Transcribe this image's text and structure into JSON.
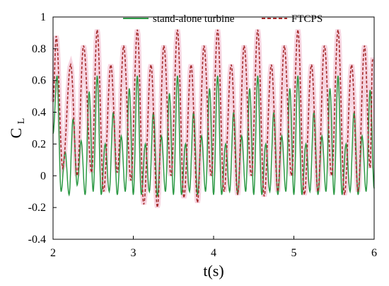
{
  "chart_data": {
    "type": "line",
    "xlabel": "t(s)",
    "ylabel_main": "C",
    "ylabel_sub": "L",
    "xlim": [
      2,
      6
    ],
    "ylim": [
      -0.4,
      1.0
    ],
    "x_ticks": [
      2,
      3,
      4,
      5,
      6
    ],
    "y_ticks": [
      -0.4,
      -0.2,
      0,
      0.2,
      0.4,
      0.6,
      0.8,
      1
    ],
    "y_tick_labels": [
      "-0.4",
      "-0.2",
      "0",
      "0.2",
      "0.4",
      "0.6",
      "0.8",
      "1"
    ],
    "grid": false,
    "legend_position": "top-right",
    "series": [
      {
        "name": "stand-alone turbine",
        "color": "#2e9a46",
        "style": "solid",
        "period_s": 0.1,
        "max": 0.63,
        "min": -0.13,
        "peaks": [
          [
            2.05,
            0.63
          ],
          [
            2.15,
            0.15
          ],
          [
            2.25,
            0.36
          ],
          [
            2.35,
            0.22
          ],
          [
            2.45,
            0.53
          ],
          [
            2.55,
            0.63
          ],
          [
            2.65,
            0.2
          ],
          [
            2.75,
            0.4
          ],
          [
            2.85,
            0.25
          ],
          [
            2.95,
            0.55
          ],
          [
            3.05,
            0.63
          ],
          [
            3.15,
            0.2
          ],
          [
            3.25,
            0.4
          ],
          [
            3.35,
            0.25
          ],
          [
            3.45,
            0.52
          ],
          [
            3.55,
            0.63
          ],
          [
            3.65,
            0.2
          ],
          [
            3.75,
            0.4
          ],
          [
            3.85,
            0.25
          ],
          [
            3.95,
            0.55
          ],
          [
            4.05,
            0.63
          ],
          [
            4.15,
            0.2
          ],
          [
            4.25,
            0.4
          ],
          [
            4.35,
            0.25
          ],
          [
            4.45,
            0.55
          ],
          [
            4.55,
            0.63
          ],
          [
            4.65,
            0.2
          ],
          [
            4.75,
            0.4
          ],
          [
            4.85,
            0.25
          ],
          [
            4.95,
            0.55
          ],
          [
            5.05,
            0.63
          ],
          [
            5.15,
            0.2
          ],
          [
            5.25,
            0.4
          ],
          [
            5.35,
            0.25
          ],
          [
            5.45,
            0.55
          ],
          [
            5.55,
            0.63
          ],
          [
            5.65,
            0.2
          ],
          [
            5.75,
            0.4
          ],
          [
            5.85,
            0.25
          ],
          [
            5.95,
            0.54
          ]
        ],
        "troughs": [
          [
            2.1,
            -0.1
          ],
          [
            2.2,
            -0.12
          ],
          [
            2.3,
            -0.06
          ],
          [
            2.4,
            -0.12
          ],
          [
            2.5,
            -0.1
          ],
          [
            2.6,
            -0.12
          ],
          [
            2.7,
            -0.1
          ],
          [
            2.8,
            -0.12
          ],
          [
            2.9,
            -0.1
          ],
          [
            3.0,
            -0.12
          ],
          [
            3.1,
            -0.12
          ],
          [
            3.2,
            -0.1
          ],
          [
            3.3,
            -0.13
          ],
          [
            3.4,
            -0.1
          ],
          [
            3.5,
            -0.12
          ],
          [
            3.6,
            -0.12
          ],
          [
            3.7,
            -0.1
          ],
          [
            3.8,
            -0.12
          ],
          [
            3.9,
            -0.1
          ],
          [
            4.0,
            -0.12
          ],
          [
            4.1,
            -0.12
          ],
          [
            4.2,
            -0.1
          ],
          [
            4.3,
            -0.12
          ],
          [
            4.4,
            -0.1
          ],
          [
            4.5,
            -0.12
          ],
          [
            4.6,
            -0.12
          ],
          [
            4.7,
            -0.1
          ],
          [
            4.8,
            -0.12
          ],
          [
            4.9,
            -0.1
          ],
          [
            5.0,
            -0.12
          ],
          [
            5.1,
            -0.12
          ],
          [
            5.2,
            -0.1
          ],
          [
            5.3,
            -0.12
          ],
          [
            5.4,
            -0.1
          ],
          [
            5.5,
            -0.12
          ],
          [
            5.6,
            -0.12
          ],
          [
            5.7,
            -0.1
          ],
          [
            5.8,
            -0.12
          ],
          [
            5.9,
            -0.1
          ],
          [
            6.0,
            -0.08
          ]
        ]
      },
      {
        "name": "FTCPS",
        "color": "#a52a2a",
        "style": "dashed",
        "period_s": 0.2,
        "max": 0.92,
        "min": -0.2,
        "peaks": [
          [
            2.04,
            0.88
          ],
          [
            2.22,
            0.7
          ],
          [
            2.38,
            0.82
          ],
          [
            2.55,
            0.92
          ],
          [
            2.72,
            0.7
          ],
          [
            2.88,
            0.82
          ],
          [
            3.05,
            0.92
          ],
          [
            3.22,
            0.7
          ],
          [
            3.38,
            0.82
          ],
          [
            3.55,
            0.92
          ],
          [
            3.72,
            0.7
          ],
          [
            3.88,
            0.82
          ],
          [
            4.05,
            0.92
          ],
          [
            4.22,
            0.7
          ],
          [
            4.38,
            0.82
          ],
          [
            4.55,
            0.92
          ],
          [
            4.72,
            0.7
          ],
          [
            4.88,
            0.82
          ],
          [
            5.05,
            0.92
          ],
          [
            5.22,
            0.7
          ],
          [
            5.38,
            0.82
          ],
          [
            5.55,
            0.92
          ],
          [
            5.72,
            0.7
          ],
          [
            5.88,
            0.82
          ],
          [
            5.98,
            0.73
          ]
        ],
        "troughs": [
          [
            2.12,
            0.05
          ],
          [
            2.3,
            0.0
          ],
          [
            2.48,
            0.02
          ],
          [
            2.63,
            -0.1
          ],
          [
            2.8,
            0.02
          ],
          [
            2.97,
            -0.03
          ],
          [
            3.13,
            -0.18
          ],
          [
            3.3,
            -0.2
          ],
          [
            3.47,
            0.0
          ],
          [
            3.63,
            -0.14
          ],
          [
            3.8,
            -0.17
          ],
          [
            3.97,
            0.0
          ],
          [
            4.13,
            -0.1
          ],
          [
            4.3,
            -0.12
          ],
          [
            4.47,
            0.0
          ],
          [
            4.63,
            -0.13
          ],
          [
            4.8,
            -0.1
          ],
          [
            4.97,
            0.0
          ],
          [
            5.13,
            -0.12
          ],
          [
            5.3,
            -0.1
          ],
          [
            5.47,
            0.0
          ],
          [
            5.63,
            -0.12
          ],
          [
            5.8,
            -0.1
          ],
          [
            5.95,
            0.05
          ]
        ]
      }
    ]
  }
}
